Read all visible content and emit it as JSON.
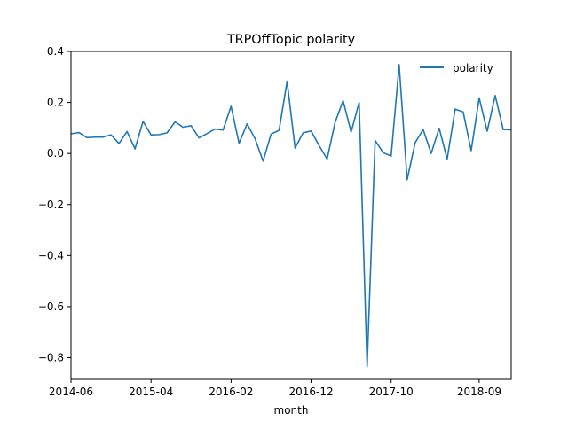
{
  "chart_data": {
    "type": "line",
    "title": "TRPOffTopic polarity",
    "xlabel": "month",
    "ylabel": "",
    "x_start": "2014-06",
    "x_end": "2019-01",
    "ylim": [
      -0.885,
      0.4
    ],
    "x_ticks": [
      "2014-06",
      "2015-04",
      "2016-02",
      "2016-12",
      "2017-10",
      "2018-09"
    ],
    "y_ticks": [
      0.4,
      0.2,
      0.0,
      -0.2,
      -0.4,
      -0.6,
      -0.8
    ],
    "y_tick_labels": [
      "0.4",
      "0.2",
      "0.0",
      "−0.2",
      "−0.4",
      "−0.6",
      "−0.8"
    ],
    "grid": false,
    "legend_position": "top-right",
    "series": [
      {
        "name": "polarity",
        "color": "#1f77b4",
        "x": [
          "2014-06",
          "2014-07",
          "2014-08",
          "2014-09",
          "2014-10",
          "2014-11",
          "2014-12",
          "2015-01",
          "2015-02",
          "2015-03",
          "2015-04",
          "2015-05",
          "2015-06",
          "2015-07",
          "2015-08",
          "2015-09",
          "2015-10",
          "2015-11",
          "2015-12",
          "2016-01",
          "2016-02",
          "2016-03",
          "2016-04",
          "2016-05",
          "2016-06",
          "2016-07",
          "2016-08",
          "2016-09",
          "2016-10",
          "2016-11",
          "2016-12",
          "2017-01",
          "2017-02",
          "2017-03",
          "2017-04",
          "2017-05",
          "2017-06",
          "2017-07",
          "2017-08",
          "2017-09",
          "2017-10",
          "2017-11",
          "2017-12",
          "2018-01",
          "2018-02",
          "2018-03",
          "2018-04",
          "2018-05",
          "2018-06",
          "2018-07",
          "2018-08",
          "2018-09",
          "2018-10",
          "2018-11",
          "2018-12",
          "2019-01"
        ],
        "values": [
          0.077,
          0.082,
          0.062,
          0.064,
          0.064,
          0.073,
          0.039,
          0.086,
          0.018,
          0.126,
          0.073,
          0.074,
          0.081,
          0.124,
          0.103,
          0.109,
          0.061,
          0.078,
          0.096,
          0.092,
          0.185,
          0.04,
          0.116,
          0.058,
          -0.03,
          0.076,
          0.091,
          0.283,
          0.021,
          0.081,
          0.088,
          0.031,
          -0.022,
          0.122,
          0.207,
          0.084,
          0.2,
          -0.835,
          0.051,
          0.003,
          -0.01,
          0.348,
          -0.103,
          0.042,
          0.094,
          0.0,
          0.099,
          -0.022,
          0.174,
          0.163,
          0.011,
          0.218,
          0.087,
          0.227,
          0.094,
          0.093
        ]
      }
    ]
  }
}
